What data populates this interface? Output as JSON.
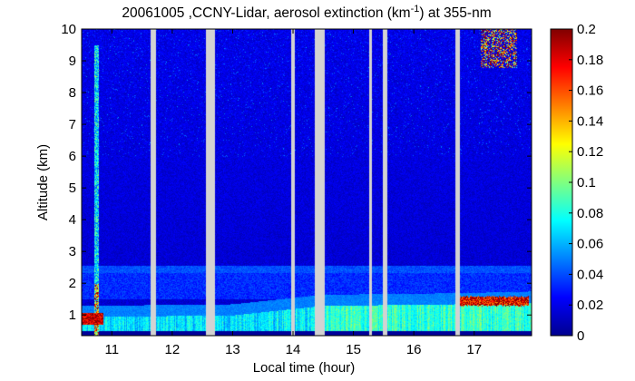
{
  "chart_data": {
    "type": "heatmap",
    "title_parts": {
      "main": "20061005 ,CCNY-Lidar, aerosol extinction (km",
      "sup": "-1",
      "tail": ") at 355-nm"
    },
    "xlabel": "Local time (hour)",
    "ylabel": "Altitude (km)",
    "xlim": [
      10.5,
      17.95
    ],
    "ylim": [
      0.35,
      10
    ],
    "x_ticks": [
      {
        "value": 11,
        "label": "11"
      },
      {
        "value": 12,
        "label": "12"
      },
      {
        "value": 13,
        "label": "13"
      },
      {
        "value": 14,
        "label": "14"
      },
      {
        "value": 15,
        "label": "15"
      },
      {
        "value": 16,
        "label": "16"
      },
      {
        "value": 17,
        "label": "17"
      }
    ],
    "y_ticks": [
      {
        "value": 1,
        "label": "1"
      },
      {
        "value": 2,
        "label": "2"
      },
      {
        "value": 3,
        "label": "3"
      },
      {
        "value": 4,
        "label": "4"
      },
      {
        "value": 5,
        "label": "5"
      },
      {
        "value": 6,
        "label": "6"
      },
      {
        "value": 7,
        "label": "7"
      },
      {
        "value": 8,
        "label": "8"
      },
      {
        "value": 9,
        "label": "9"
      },
      {
        "value": 10,
        "label": "10"
      }
    ],
    "colorbar": {
      "range": [
        0,
        0.2
      ],
      "colormap": "jet",
      "ticks": [
        {
          "value": 0,
          "label": "0"
        },
        {
          "value": 0.02,
          "label": "0.02"
        },
        {
          "value": 0.04,
          "label": "0.04"
        },
        {
          "value": 0.06,
          "label": "0.06"
        },
        {
          "value": 0.08,
          "label": "0.08"
        },
        {
          "value": 0.1,
          "label": "0.1"
        },
        {
          "value": 0.12,
          "label": "0.12"
        },
        {
          "value": 0.14,
          "label": "0.14"
        },
        {
          "value": 0.16,
          "label": "0.16"
        },
        {
          "value": 0.18,
          "label": "0.18"
        },
        {
          "value": 0.2,
          "label": "0.2"
        }
      ]
    },
    "data_gaps_hours": [
      [
        11.63,
        11.72
      ],
      [
        12.55,
        12.7
      ],
      [
        13.96,
        14.02
      ],
      [
        14.35,
        14.52
      ],
      [
        15.25,
        15.3
      ],
      [
        15.48,
        15.55
      ],
      [
        16.68,
        16.75
      ]
    ],
    "layers": [
      {
        "name": "background",
        "extinction": 0.015
      },
      {
        "name": "boundary_layer",
        "top_km": [
          [
            10.5,
            0.95
          ],
          [
            13.0,
            1.0
          ],
          [
            14.5,
            1.3
          ],
          [
            16.7,
            1.35
          ],
          [
            17.9,
            1.4
          ]
        ],
        "extinction": 0.07
      },
      {
        "name": "residual_layer",
        "altitude_range_km": [
          1.5,
          2.5
        ],
        "extinction": 0.035
      },
      {
        "name": "elevated_layer",
        "center_km": 2.45,
        "extinction": 0.04
      },
      {
        "name": "dense_aerosol_top_17h",
        "time_range_hours": [
          16.75,
          17.9
        ],
        "altitude_km": 1.45,
        "extinction": 0.2
      },
      {
        "name": "near_ground_plume_11h",
        "time_range_hours": [
          10.5,
          10.85
        ],
        "altitude_km": 0.9,
        "extinction": 0.2
      },
      {
        "name": "cloud_upper_17h",
        "time_range_hours": [
          17.1,
          17.7
        ],
        "altitude_range_km": [
          8.8,
          10
        ],
        "extinction": 0.2
      }
    ]
  }
}
